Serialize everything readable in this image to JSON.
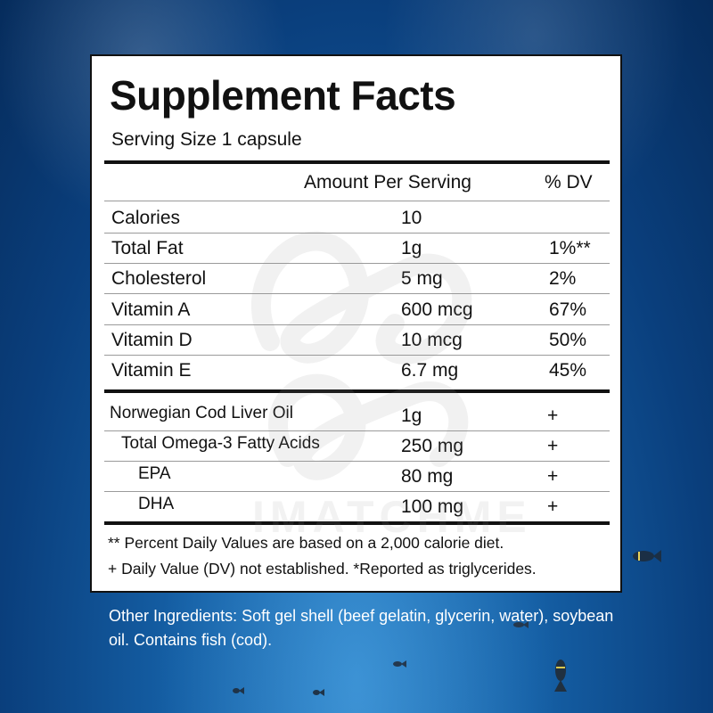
{
  "panel": {
    "title": "Supplement Facts",
    "serving_size": "Serving Size 1 capsule",
    "header": {
      "amount": "Amount Per Serving",
      "dv": "% DV"
    },
    "nutrients": [
      {
        "name": "Calories",
        "amount": "10",
        "dv": ""
      },
      {
        "name": "Total Fat",
        "amount": "1g",
        "dv": "1%**"
      },
      {
        "name": "Cholesterol",
        "amount": "5 mg",
        "dv": "2%"
      },
      {
        "name": "Vitamin A",
        "amount": "600 mcg",
        "dv": "67%"
      },
      {
        "name": "Vitamin D",
        "amount": "10 mcg",
        "dv": "50%"
      },
      {
        "name": "Vitamin E",
        "amount": "6.7 mg",
        "dv": "45%"
      }
    ],
    "ingredients": [
      {
        "name": "Norwegian Cod Liver Oil",
        "amount": "1g",
        "dv": "+"
      },
      {
        "name": "Total Omega-3 Fatty Acids",
        "amount": "250 mg",
        "dv": "+"
      },
      {
        "name": "EPA",
        "amount": "80 mg",
        "dv": "+"
      },
      {
        "name": "DHA",
        "amount": "100 mg",
        "dv": "+"
      }
    ],
    "footnote_1": "** Percent Daily Values are based on a 2,000 calorie diet.",
    "footnote_2": "+ Daily Value (DV) not established. *Reported as triglycerides."
  },
  "other_ingredients": "Other Ingredients: Soft gel shell (beef gelatin, glycerin, water), soybean oil. Contains fish (cod).",
  "watermark": "IMATCHME",
  "colors": {
    "ocean": "#0a3f7d",
    "panel": "#ffffff",
    "text": "#111111"
  }
}
